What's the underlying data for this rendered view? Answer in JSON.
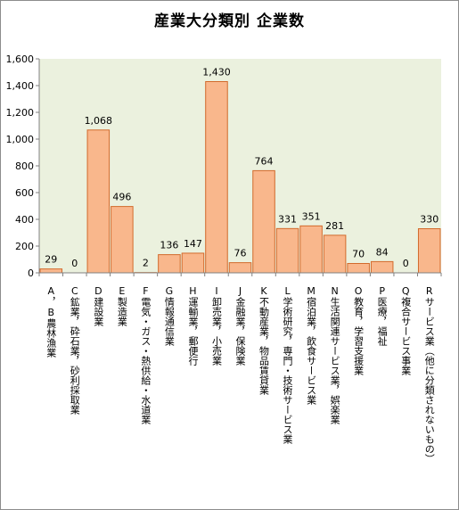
{
  "chart_data": {
    "type": "bar",
    "title": "産業大分類別 企業数",
    "categories": [
      "A，B農林漁業",
      "C鉱業，砕石業，砂利採取業",
      "D建設業",
      "E製造業",
      "F電気・ガス・熱供給・水道業",
      "G情報通信業",
      "H運輸業，郵便行",
      "I卸売業，小売業",
      "J金融業，保険業",
      "K不動産業，物品賃貸業",
      "L学術研究，専門・技術サービス業",
      "M宿泊業，飲食サービス業",
      "N生活関連サービス業，娯楽業",
      "O教育，学習支援業",
      "P医療，福祉",
      "Q複合サービス事業",
      "Rサービス業（他に分類されないもの）"
    ],
    "values": [
      29,
      0,
      1068,
      496,
      2,
      136,
      147,
      1430,
      76,
      764,
      331,
      351,
      281,
      70,
      84,
      0,
      330
    ],
    "value_labels": [
      "29",
      "0",
      "1,068",
      "496",
      "2",
      "136",
      "147",
      "1,430",
      "76",
      "764",
      "331",
      "351",
      "281",
      "70",
      "84",
      "0",
      "330"
    ],
    "ylim": [
      0,
      1600
    ],
    "yticks": [
      0,
      200,
      400,
      600,
      800,
      1000,
      1200,
      1400,
      1600
    ],
    "ytick_labels": [
      "0",
      "200",
      "400",
      "600",
      "800",
      "1,000",
      "1,200",
      "1,400",
      "1,600"
    ],
    "xlabel": "",
    "ylabel": "",
    "grid": false,
    "legend": "none",
    "colors": {
      "plot_background": "#ebf1de",
      "bar_fill": "#f9b78c",
      "bar_stroke": "#d26a2c",
      "axis": "#808080"
    }
  }
}
